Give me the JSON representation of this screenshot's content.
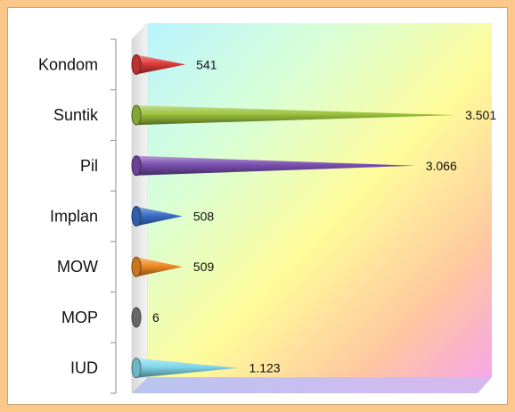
{
  "chart_data": {
    "type": "bar",
    "style": "horizontal 3D cones",
    "categories": [
      "Kondom",
      "Suntik",
      "Pil",
      "Implan",
      "MOW",
      "MOP",
      "IUD"
    ],
    "values": [
      541,
      3501,
      3066,
      508,
      509,
      6,
      1123
    ],
    "value_labels": [
      "541",
      "3.501",
      "3.066",
      "508",
      "509",
      "6",
      "1.123"
    ],
    "bar_colors": [
      "#e03a3a",
      "#9ac23c",
      "#7a4fb0",
      "#3a6fc8",
      "#f08a24",
      "#7a7a7a",
      "#7fd6ea"
    ],
    "xlim": [
      0,
      3600
    ],
    "grid": false,
    "legend": "none",
    "title": "",
    "xlabel": "",
    "ylabel": ""
  }
}
